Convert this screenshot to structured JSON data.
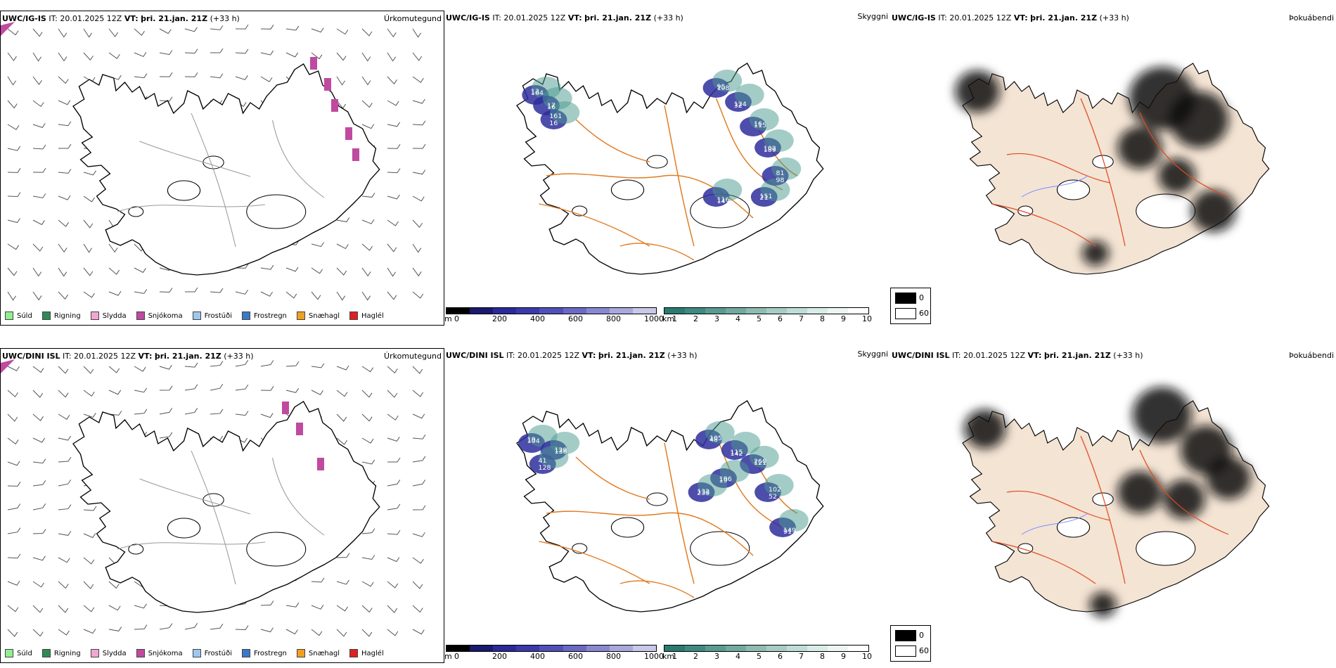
{
  "rows": [
    {
      "model": "UWC/IG-IS",
      "it_label": "IT:",
      "it_value": "20.01.2025 12Z",
      "vt_label": "VT:",
      "vt_value": "þri. 21.jan. 21Z",
      "lead": "(+33 h)",
      "vis_labels": [
        "13",
        "17",
        "16",
        "95",
        "124",
        "16",
        "102",
        "98",
        "151",
        "116",
        "164",
        "16",
        "161",
        "108",
        "32",
        "115",
        "189",
        "81",
        "21",
        "14"
      ]
    },
    {
      "model": "UWC/DINI ISL",
      "it_label": "IT:",
      "it_value": "20.01.2025 12Z",
      "vt_label": "VT:",
      "vt_value": "þri. 21.jan. 21Z",
      "lead": "(+33 h)",
      "vis_labels": [
        "19",
        "129",
        "128",
        "105",
        "115",
        "260",
        "196",
        "52",
        "132",
        "149",
        "104",
        "136",
        "41",
        "48",
        "142",
        "121",
        "19",
        "102",
        "239",
        "91"
      ]
    }
  ],
  "panel_titles": {
    "precip": "Úrkomutegund",
    "visibility": "Skyggni",
    "fog": "Þokuábendi"
  },
  "precip_legend": [
    {
      "label": "Súld",
      "color": "#90ee90"
    },
    {
      "label": "Rigning",
      "color": "#2e8b57"
    },
    {
      "label": "Slydda",
      "color": "#f2a6d0"
    },
    {
      "label": "Snjókoma",
      "color": "#c04aa0"
    },
    {
      "label": "Frostúði",
      "color": "#9cc8f0"
    },
    {
      "label": "Frostregn",
      "color": "#3a78c8"
    },
    {
      "label": "Snæhagl",
      "color": "#f0a020"
    },
    {
      "label": "Haglél",
      "color": "#e02020"
    }
  ],
  "cloud_base_bar": {
    "unit": "m",
    "ticks": [
      "0",
      "200",
      "400",
      "600",
      "800",
      "1000"
    ],
    "colors": [
      "#000000",
      "#1a1a6e",
      "#2a2a9a",
      "#3a3aaa",
      "#5050b8",
      "#6a6ac4",
      "#8888d0",
      "#a8a8dc",
      "#c8c8e8"
    ]
  },
  "visibility_bar": {
    "unit": "km",
    "ticks": [
      "1",
      "2",
      "3",
      "4",
      "5",
      "6",
      "7",
      "8",
      "9",
      "10"
    ],
    "colors": [
      "#2a7a70",
      "#3e8a80",
      "#5a9a90",
      "#72aaa0",
      "#8ebcb2",
      "#a8ccc4",
      "#c0dcd6",
      "#d8ece8",
      "#eef6f4",
      "#ffffff"
    ]
  },
  "fog_legend": {
    "low": "0",
    "high": "60"
  }
}
